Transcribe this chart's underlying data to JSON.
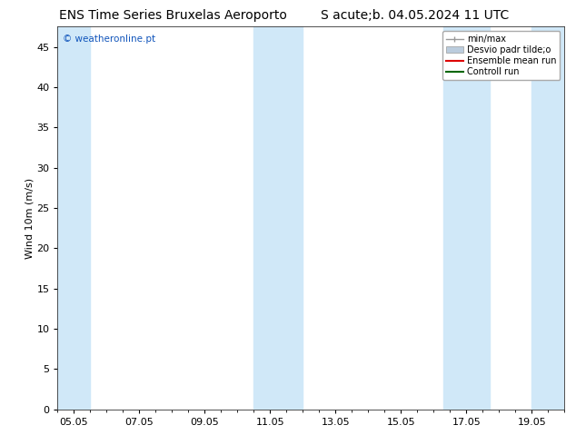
{
  "title_left": "ENS Time Series Bruxelas Aeroporto",
  "title_right": "S acute;b. 04.05.2024 11 UTC",
  "ylabel": "Wind 10m (m/s)",
  "watermark": "© weatheronline.pt",
  "watermark_color": "#1155bb",
  "xlim_start": 0,
  "xlim_end": 15.5,
  "ylim": [
    0,
    47.5
  ],
  "yticks": [
    0,
    5,
    10,
    15,
    20,
    25,
    30,
    35,
    40,
    45
  ],
  "xtick_labels": [
    "05.05",
    "07.05",
    "09.05",
    "11.05",
    "13.05",
    "15.05",
    "17.05",
    "19.05"
  ],
  "xtick_positions": [
    0.5,
    2.5,
    4.5,
    6.5,
    8.5,
    10.5,
    12.5,
    14.5
  ],
  "background_color": "#ffffff",
  "plot_bg_color": "#ffffff",
  "shaded_bands": [
    {
      "x_start": 0.0,
      "x_end": 1.0,
      "color": "#d0e8f8"
    },
    {
      "x_start": 6.0,
      "x_end": 7.5,
      "color": "#d0e8f8"
    },
    {
      "x_start": 11.8,
      "x_end": 13.2,
      "color": "#d0e8f8"
    },
    {
      "x_start": 14.5,
      "x_end": 15.5,
      "color": "#d0e8f8"
    }
  ],
  "legend_label_minmax": "min/max",
  "legend_label_std": "Desvio padr tilde;o",
  "legend_label_mean": "Ensemble mean run",
  "legend_label_ctrl": "Controll run",
  "color_minmax": "#999999",
  "color_std": "#bbccdd",
  "color_mean": "#dd0000",
  "color_ctrl": "#006600",
  "title_fontsize": 10,
  "axis_fontsize": 8,
  "tick_fontsize": 8,
  "legend_fontsize": 7
}
